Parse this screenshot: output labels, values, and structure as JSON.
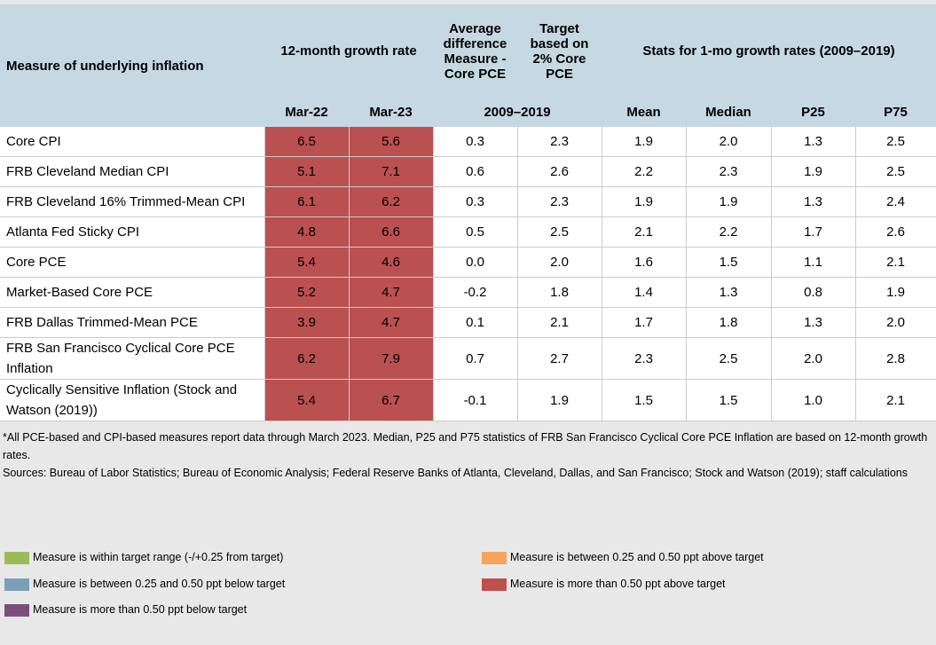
{
  "header": {
    "measure": "Measure of underlying inflation",
    "growth": "12-month growth rate",
    "avg_diff": "Average difference Measure - Core PCE",
    "target": "Target based on 2% Core PCE",
    "stats": "Stats for 1-mo growth rates (2009–2019)",
    "columns": [
      "Mar-22",
      "Mar-23",
      "2009–2019",
      "Mean",
      "Median",
      "P25",
      "P75"
    ]
  },
  "table": {
    "rows": [
      [
        "Core CPI",
        "6.5",
        "5.6",
        "0.3",
        "2.3",
        "1.9",
        "2.0",
        "1.3",
        "2.5"
      ],
      [
        "FRB Cleveland Median CPI",
        "5.1",
        "7.1",
        "0.6",
        "2.6",
        "2.2",
        "2.3",
        "1.9",
        "2.5"
      ],
      [
        "FRB Cleveland 16% Trimmed-Mean CPI",
        "6.1",
        "6.2",
        "0.3",
        "2.3",
        "1.9",
        "1.9",
        "1.3",
        "2.4"
      ],
      [
        "Atlanta Fed Sticky CPI",
        "4.8",
        "6.6",
        "0.5",
        "2.5",
        "2.1",
        "2.2",
        "1.7",
        "2.6"
      ],
      [
        "Core PCE",
        "5.4",
        "4.6",
        "0.0",
        "2.0",
        "1.6",
        "1.5",
        "1.1",
        "2.1"
      ],
      [
        "Market-Based Core PCE",
        "5.2",
        "4.7",
        "-0.2",
        "1.8",
        "1.4",
        "1.3",
        "0.8",
        "1.9"
      ],
      [
        "FRB Dallas Trimmed-Mean PCE",
        "3.9",
        "4.7",
        "0.1",
        "2.1",
        "1.7",
        "1.8",
        "1.3",
        "2.0"
      ],
      [
        "FRB San Francisco Cyclical Core PCE Inflation",
        "6.2",
        "7.9",
        "0.7",
        "2.7",
        "2.3",
        "2.5",
        "2.0",
        "2.8"
      ],
      [
        "Cyclically Sensitive Inflation (Stock and Watson (2019))",
        "5.4",
        "6.7",
        "-0.1",
        "1.9",
        "1.5",
        "1.5",
        "1.0",
        "2.1"
      ]
    ]
  },
  "notes": [
    "*All PCE-based and CPI-based measures report data through March 2023. Median, P25 and P75 statistics of FRB San Francisco Cyclical Core PCE Inflation are based on 12-month growth rates.",
    "Sources: Bureau of Labor Statistics; Bureau of Economic Analysis; Federal Reserve Banks of Atlanta, Cleveland, Dallas, and San Francisco; Stock and Watson (2019); staff calculations"
  ],
  "legend": [
    {
      "label": "Measure is within target range (-/+0.25 from target)",
      "color": "#9bbb59"
    },
    {
      "label": "Measure is between 0.25 and 0.50 ppt above target",
      "color": "#f6a35e"
    },
    {
      "label": "Measure is between 0.25 and 0.50 ppt below target",
      "color": "#7aa0b8"
    },
    {
      "label": "Measure is more than 0.50 ppt above target",
      "color": "#c0504d"
    },
    {
      "label": "Measure is more than 0.50 ppt below target",
      "color": "#7b4f7b"
    }
  ]
}
